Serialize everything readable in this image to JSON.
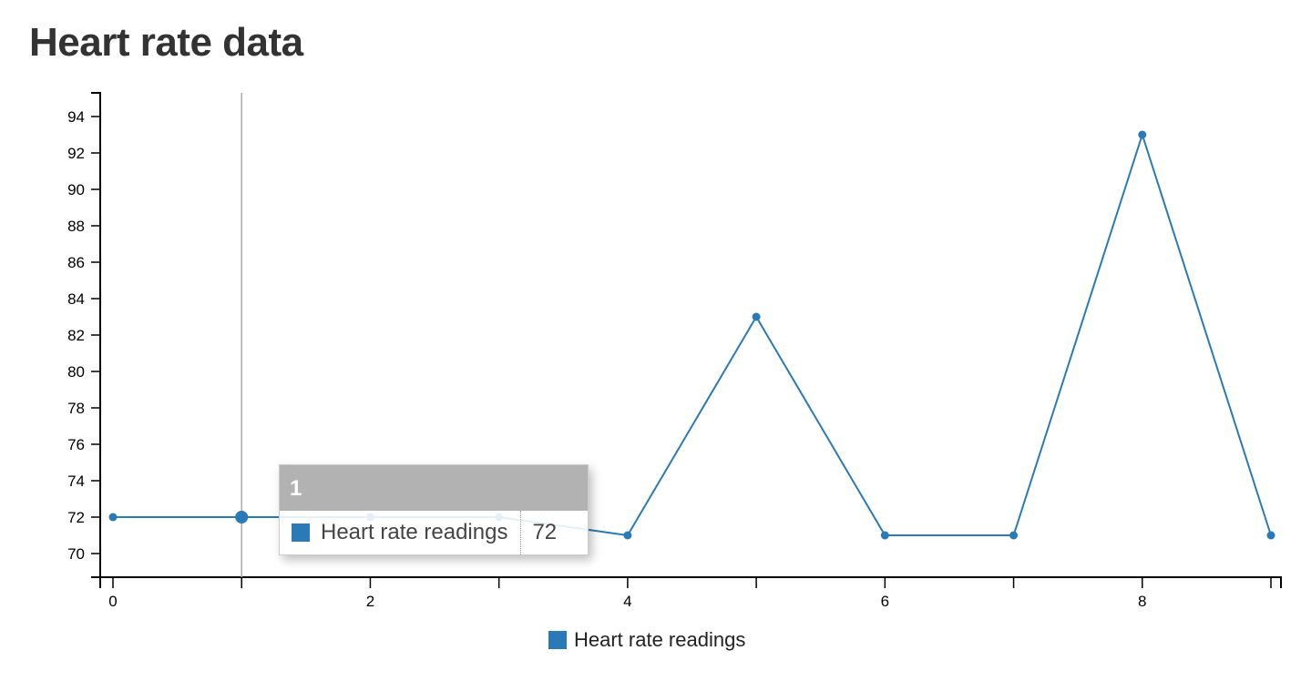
{
  "page": {
    "title": "Heart rate data"
  },
  "colors": {
    "series": "#2a7ab7",
    "focus_line": "#aaaaaa",
    "tooltip_header": "#aaaaaa"
  },
  "chart_data": {
    "type": "line",
    "x": [
      0,
      1,
      2,
      3,
      4,
      5,
      6,
      7,
      8,
      9
    ],
    "series": [
      {
        "name": "Heart rate readings",
        "values": [
          72,
          72,
          72,
          72,
          71,
          83,
          71,
          71,
          93,
          71
        ]
      }
    ],
    "xlim": [
      0,
      9
    ],
    "ylim": [
      68.7,
      95.3
    ],
    "x_ticks": [
      0,
      1,
      2,
      3,
      4,
      5,
      6,
      7,
      8,
      9
    ],
    "x_tick_labels": [
      "0",
      "",
      "2",
      "",
      "4",
      "",
      "6",
      "",
      "8",
      ""
    ],
    "y_ticks": [
      70,
      72,
      74,
      76,
      78,
      80,
      82,
      84,
      86,
      88,
      90,
      92,
      94
    ],
    "y_tick_labels": [
      "70",
      "72",
      "74",
      "76",
      "78",
      "80",
      "82",
      "84",
      "86",
      "88",
      "90",
      "92",
      "94"
    ],
    "grid": false,
    "legend": "bottom-center",
    "focused_x": 1
  },
  "tooltip": {
    "title": "1",
    "rows": [
      {
        "name": "Heart rate readings",
        "value": "72"
      }
    ]
  },
  "legend": {
    "items": [
      {
        "label": "Heart rate readings"
      }
    ]
  }
}
